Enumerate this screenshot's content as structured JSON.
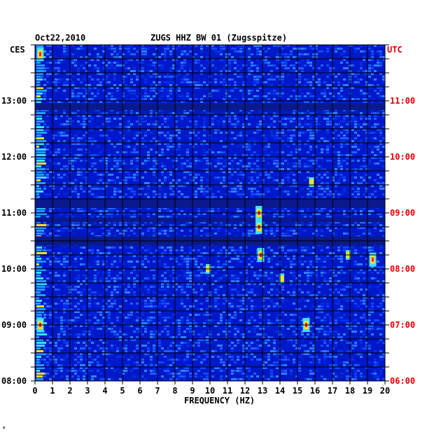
{
  "chart_data": {
    "type": "heatmap",
    "title_left": "Oct22,2010",
    "title": "ZUGS HHZ BW 01 (Zugsspitze)",
    "xlabel": "FREQUENCY (HZ)",
    "left_axis_label": "CES",
    "right_axis_label": "UTC",
    "xlim": [
      0,
      20
    ],
    "x_ticks": [
      "0",
      "1",
      "2",
      "3",
      "4",
      "5",
      "6",
      "7",
      "8",
      "9",
      "10",
      "11",
      "12",
      "13",
      "14",
      "15",
      "16",
      "17",
      "18",
      "19",
      "20"
    ],
    "left_ticks": [
      "13:00",
      "12:00",
      "11:00",
      "10:00",
      "09:00",
      "08:00"
    ],
    "right_ticks": [
      "11:00",
      "10:00",
      "09:00",
      "08:00",
      "07:00",
      "06:00"
    ],
    "time_range_ces": [
      "08:00",
      "14:00"
    ],
    "colors": {
      "background_low": "#0018c8",
      "dark_band": "#0a1a8c",
      "mid": "#2060ff",
      "high_cyan": "#40e0ff",
      "high_yellow": "#ffe020",
      "high_red": "#ff2000",
      "utc_label": "#e00000",
      "grid": "#000000"
    },
    "dark_bands_ces": [
      [
        "11:05",
        "11:15"
      ],
      [
        "10:50",
        "10:55"
      ],
      [
        "10:25",
        "10:35"
      ],
      [
        "12:50",
        "12:57"
      ]
    ],
    "hotspots": [
      {
        "hz": 12.8,
        "time_ces": "10:45",
        "level": "high"
      },
      {
        "hz": 12.8,
        "time_ces": "11:00",
        "level": "high"
      },
      {
        "hz": 12.9,
        "time_ces": "10:15",
        "level": "high"
      },
      {
        "hz": 15.8,
        "time_ces": "11:33",
        "level": "mid"
      },
      {
        "hz": 15.5,
        "time_ces": "09:00",
        "level": "high"
      },
      {
        "hz": 0.3,
        "time_ces": "13:50",
        "level": "high"
      },
      {
        "hz": 0.3,
        "time_ces": "09:00",
        "level": "high"
      },
      {
        "hz": 9.9,
        "time_ces": "10:00",
        "level": "mid"
      },
      {
        "hz": 14.1,
        "time_ces": "09:50",
        "level": "mid"
      },
      {
        "hz": 19.3,
        "time_ces": "10:10",
        "level": "high"
      },
      {
        "hz": 17.9,
        "time_ces": "10:15",
        "level": "mid"
      }
    ],
    "footnote_mark": "*"
  }
}
